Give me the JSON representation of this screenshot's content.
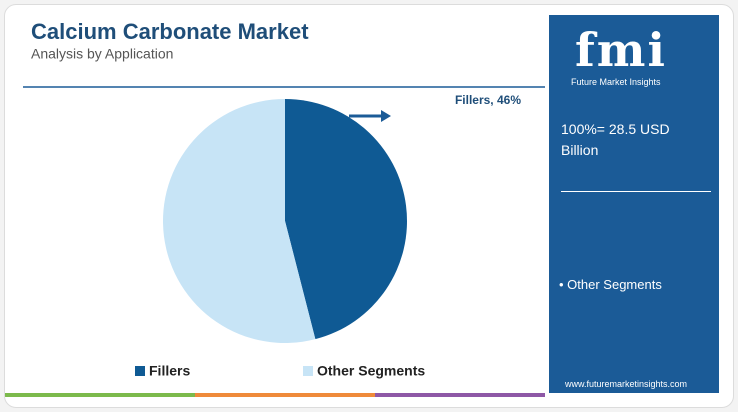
{
  "chart_data": {
    "type": "pie",
    "title": "Calcium Carbonate Market",
    "subtitle": "Analysis by Application",
    "categories": [
      "Fillers",
      "Other Segments"
    ],
    "values": [
      46,
      54
    ],
    "value_labels": [
      "Fillers, 46%",
      null
    ],
    "colors": [
      "#0f5a94",
      "#c7e4f6"
    ]
  },
  "side_panel": {
    "logo": "fmi",
    "brand": "Future Market Insights",
    "total": "100%= 28.5 USD Billion",
    "note": "• Other Segments",
    "website": "www.futuremarketinsights.com"
  }
}
